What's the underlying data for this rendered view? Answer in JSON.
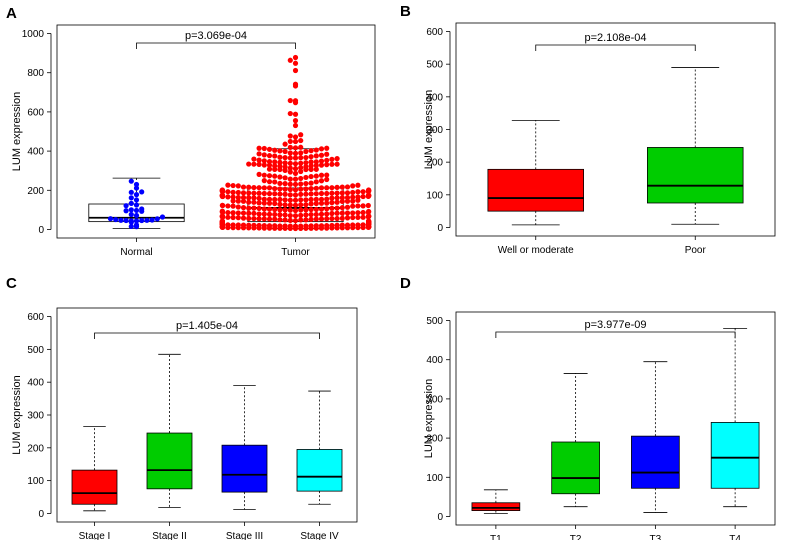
{
  "chart_data": [
    {
      "panel": "A",
      "type": "box",
      "ylabel": "LUM expression",
      "ylim": [
        0,
        1000
      ],
      "yticks": [
        0,
        200,
        400,
        600,
        800,
        1000
      ],
      "categories": [
        "Normal",
        "Tumor"
      ],
      "colors": [
        "#0000ff",
        "#ff0000"
      ],
      "boxes": [
        {
          "q1": 40,
          "median": 60,
          "q3": 130,
          "whisker_low": 5,
          "whisker_high": 262
        },
        {
          "q1": 40,
          "median": 110,
          "q3": 212,
          "whisker_low": 5,
          "whisker_high": 412
        }
      ],
      "points_counts": [
        33,
        500
      ],
      "pvalue": "p=3.069e-04"
    },
    {
      "panel": "B",
      "type": "box",
      "ylabel": "LUM expression",
      "ylim": [
        0,
        600
      ],
      "yticks": [
        0,
        100,
        200,
        300,
        400,
        500,
        600
      ],
      "categories": [
        "Well or moderate",
        "Poor"
      ],
      "colors": [
        "#ff0000",
        "#00cc00"
      ],
      "boxes": [
        {
          "q1": 50,
          "median": 90,
          "q3": 178,
          "whisker_low": 8,
          "whisker_high": 328
        },
        {
          "q1": 75,
          "median": 128,
          "q3": 245,
          "whisker_low": 10,
          "whisker_high": 490
        }
      ],
      "pvalue": "p=2.108e-04"
    },
    {
      "panel": "C",
      "type": "box",
      "ylabel": "LUM expression",
      "ylim": [
        0,
        600
      ],
      "yticks": [
        0,
        100,
        200,
        300,
        400,
        500,
        600
      ],
      "categories": [
        "Stage I",
        "Stage II",
        "Stage III",
        "Stage IV"
      ],
      "colors": [
        "#ff0000",
        "#00cc00",
        "#0000ff",
        "#00ffff"
      ],
      "boxes": [
        {
          "q1": 28,
          "median": 62,
          "q3": 132,
          "whisker_low": 8,
          "whisker_high": 265
        },
        {
          "q1": 75,
          "median": 132,
          "q3": 245,
          "whisker_low": 18,
          "whisker_high": 485
        },
        {
          "q1": 65,
          "median": 118,
          "q3": 208,
          "whisker_low": 12,
          "whisker_high": 390
        },
        {
          "q1": 68,
          "median": 112,
          "q3": 195,
          "whisker_low": 28,
          "whisker_high": 373
        }
      ],
      "pvalue": "p=1.405e-04"
    },
    {
      "panel": "D",
      "type": "box",
      "ylabel": "LUM expression",
      "ylim": [
        0,
        500
      ],
      "yticks": [
        0,
        100,
        200,
        300,
        400,
        500
      ],
      "categories": [
        "T1",
        "T2",
        "T3",
        "T4"
      ],
      "colors": [
        "#ff0000",
        "#00cc00",
        "#0000ff",
        "#00ffff"
      ],
      "boxes": [
        {
          "q1": 15,
          "median": 22,
          "q3": 35,
          "whisker_low": 8,
          "whisker_high": 68
        },
        {
          "q1": 58,
          "median": 98,
          "q3": 190,
          "whisker_low": 25,
          "whisker_high": 365
        },
        {
          "q1": 72,
          "median": 112,
          "q3": 205,
          "whisker_low": 10,
          "whisker_high": 395
        },
        {
          "q1": 72,
          "median": 150,
          "q3": 240,
          "whisker_low": 25,
          "whisker_high": 480
        }
      ],
      "pvalue": "p=3.977e-09"
    }
  ]
}
